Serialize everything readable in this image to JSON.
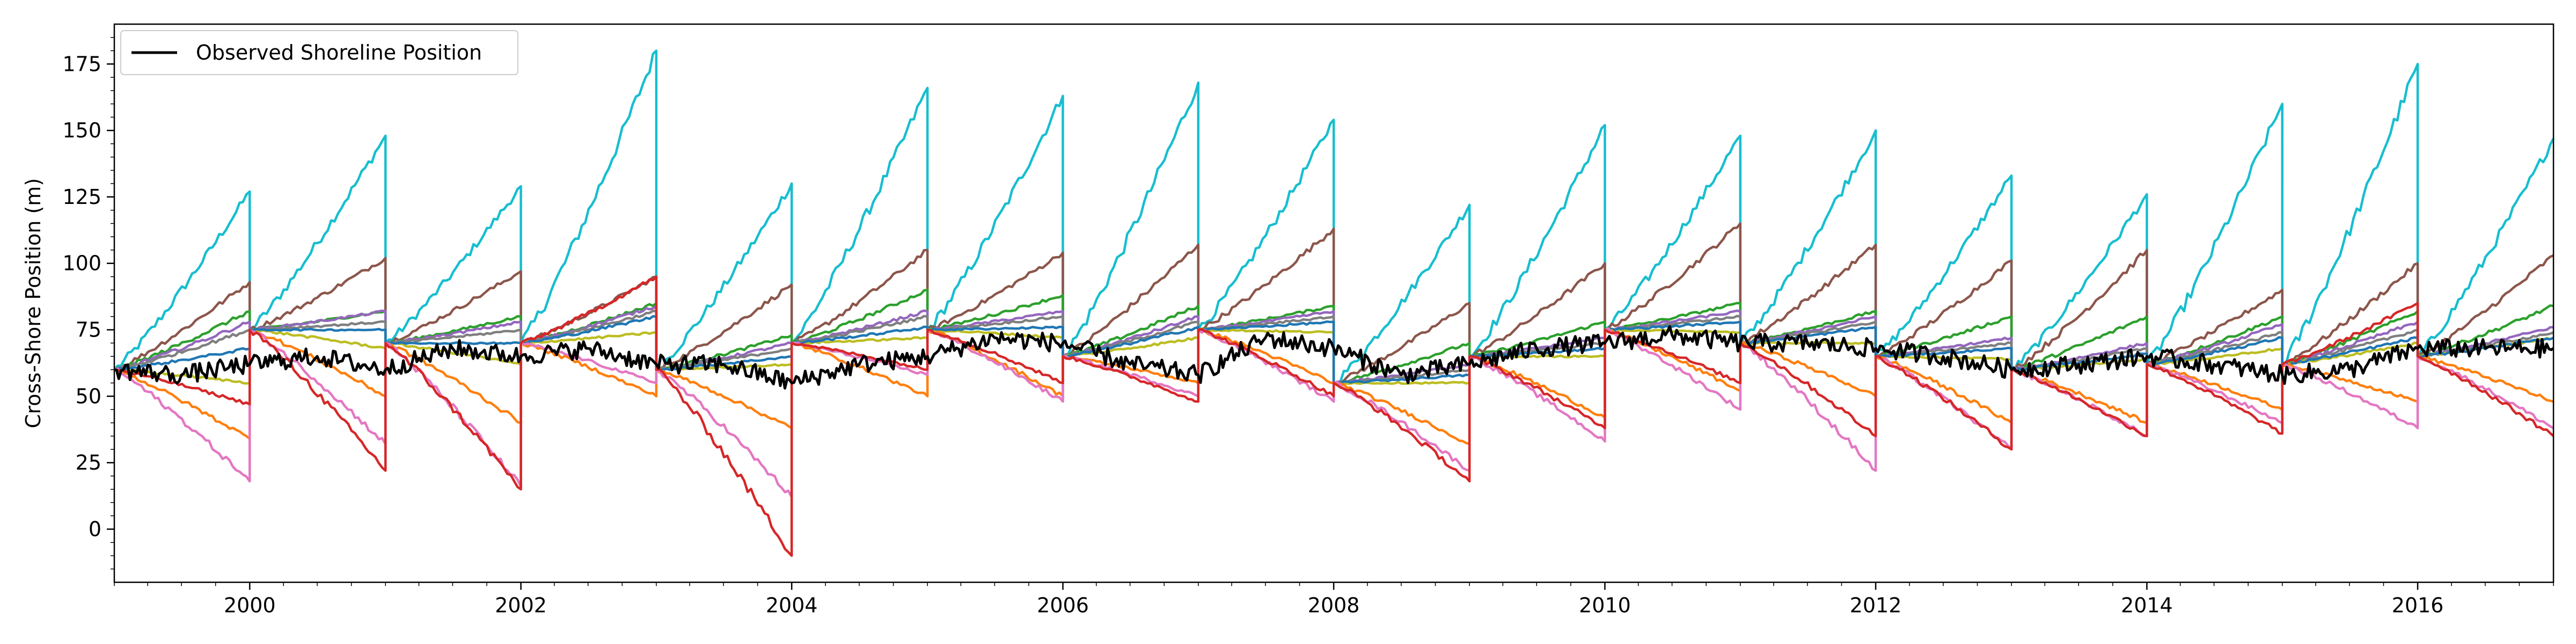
{
  "chart_data": {
    "type": "line",
    "title": "",
    "xlabel": "",
    "ylabel": "Cross-Shore Position (m)",
    "xlim": [
      "1999-01-01",
      "2017-01-01"
    ],
    "ylim": [
      -20,
      190
    ],
    "x_ticks": [
      "2000",
      "2002",
      "2004",
      "2006",
      "2008",
      "2010",
      "2012",
      "2014",
      "2016"
    ],
    "y_ticks": [
      "0",
      "25",
      "50",
      "75",
      "100",
      "125",
      "150",
      "175"
    ],
    "grid": false,
    "legend": {
      "position": "top-left",
      "entries": [
        "Observed Shoreline Position"
      ]
    },
    "observed": {
      "name": "Observed Shoreline Position",
      "color": "#000000",
      "x": [
        "1999-01-01",
        "1999-07-01",
        "2000-01-01",
        "2000-07-01",
        "2001-01-01",
        "2001-07-01",
        "2002-01-01",
        "2002-07-01",
        "2003-01-01",
        "2003-07-01",
        "2004-01-01",
        "2004-07-01",
        "2005-01-01",
        "2005-07-01",
        "2006-01-01",
        "2006-07-01",
        "2007-01-01",
        "2007-07-01",
        "2008-01-01",
        "2008-07-01",
        "2009-01-01",
        "2009-07-01",
        "2010-01-01",
        "2010-07-01",
        "2011-01-01",
        "2011-07-01",
        "2012-01-01",
        "2012-07-01",
        "2013-01-01",
        "2013-07-01",
        "2014-01-01",
        "2014-07-01",
        "2015-01-01",
        "2015-07-01",
        "2016-01-01",
        "2016-07-01",
        "2017-01-01"
      ],
      "y": [
        60,
        58,
        62,
        65,
        60,
        68,
        65,
        68,
        62,
        62,
        55,
        62,
        65,
        72,
        70,
        62,
        58,
        72,
        68,
        58,
        62,
        68,
        70,
        73,
        70,
        70,
        68,
        65,
        60,
        62,
        65,
        62,
        58,
        60,
        68,
        68,
        68
      ]
    },
    "model_segments": [
      {
        "start": "1999-01-01",
        "end": "2000-01-01"
      },
      {
        "start": "2000-01-01",
        "end": "2001-01-01"
      },
      {
        "start": "2001-01-01",
        "end": "2002-01-01"
      },
      {
        "start": "2002-01-01",
        "end": "2003-01-01"
      },
      {
        "start": "2003-01-01",
        "end": "2004-01-01"
      },
      {
        "start": "2004-01-01",
        "end": "2005-01-01"
      },
      {
        "start": "2005-01-01",
        "end": "2006-01-01"
      },
      {
        "start": "2006-01-01",
        "end": "2007-01-01"
      },
      {
        "start": "2007-01-01",
        "end": "2008-01-01"
      },
      {
        "start": "2008-01-01",
        "end": "2009-01-01"
      },
      {
        "start": "2009-01-01",
        "end": "2010-01-01"
      },
      {
        "start": "2010-01-01",
        "end": "2011-01-01"
      },
      {
        "start": "2011-01-01",
        "end": "2012-01-01"
      },
      {
        "start": "2012-01-01",
        "end": "2013-01-01"
      },
      {
        "start": "2013-01-01",
        "end": "2014-01-01"
      },
      {
        "start": "2014-01-01",
        "end": "2015-01-01"
      },
      {
        "start": "2015-01-01",
        "end": "2016-01-01"
      },
      {
        "start": "2016-01-01",
        "end": "2017-01-01"
      }
    ],
    "series": [
      {
        "color": "#17becf",
        "start": [
          60,
          75,
          70,
          70,
          60,
          70,
          75,
          65,
          75,
          55,
          65,
          75,
          70,
          65,
          60,
          62,
          62,
          65
        ],
        "end": [
          127,
          148,
          129,
          180,
          130,
          166,
          163,
          168,
          154,
          122,
          152,
          148,
          150,
          133,
          126,
          160,
          175,
          147
        ]
      },
      {
        "color": "#8c564b",
        "start": [
          60,
          75,
          70,
          70,
          60,
          70,
          75,
          65,
          75,
          55,
          65,
          75,
          70,
          65,
          60,
          62,
          62,
          65
        ],
        "end": [
          93,
          102,
          97,
          95,
          92,
          105,
          104,
          107,
          113,
          85,
          100,
          115,
          107,
          101,
          105,
          90,
          100,
          103
        ]
      },
      {
        "color": "#2ca02c",
        "start": [
          60,
          75,
          70,
          70,
          60,
          70,
          75,
          65,
          75,
          55,
          65,
          75,
          70,
          65,
          60,
          62,
          62,
          65
        ],
        "end": [
          82,
          82,
          80,
          85,
          73,
          90,
          88,
          84,
          84,
          70,
          78,
          85,
          82,
          80,
          80,
          80,
          82,
          84
        ]
      },
      {
        "color": "#9467bd",
        "start": [
          60,
          75,
          70,
          70,
          60,
          70,
          75,
          65,
          75,
          55,
          65,
          75,
          70,
          65,
          60,
          62,
          62,
          65
        ],
        "end": [
          78,
          82,
          78,
          84,
          70,
          82,
          82,
          80,
          82,
          62,
          72,
          82,
          80,
          72,
          70,
          77,
          78,
          76
        ]
      },
      {
        "color": "#7f7f7f",
        "start": [
          60,
          75,
          70,
          70,
          60,
          70,
          75,
          65,
          75,
          55,
          65,
          75,
          70,
          65,
          60,
          62,
          62,
          65
        ],
        "end": [
          75,
          78,
          75,
          82,
          68,
          80,
          80,
          78,
          80,
          60,
          70,
          80,
          78,
          70,
          68,
          74,
          75,
          74
        ]
      },
      {
        "color": "#bcbd22",
        "start": [
          60,
          75,
          70,
          70,
          60,
          70,
          75,
          65,
          75,
          55,
          65,
          75,
          70,
          65,
          60,
          62,
          62,
          65
        ],
        "end": [
          55,
          68,
          62,
          74,
          62,
          72,
          72,
          72,
          74,
          55,
          65,
          74,
          70,
          64,
          64,
          68,
          70,
          72
        ]
      },
      {
        "color": "#1f77b4",
        "start": [
          60,
          75,
          70,
          70,
          60,
          70,
          75,
          65,
          75,
          55,
          65,
          75,
          70,
          65,
          60,
          62,
          62,
          65
        ],
        "end": [
          68,
          75,
          70,
          80,
          65,
          76,
          76,
          76,
          78,
          58,
          68,
          78,
          76,
          68,
          66,
          72,
          72,
          72
        ]
      },
      {
        "color": "#ff7f0e",
        "start": [
          60,
          75,
          70,
          70,
          60,
          70,
          75,
          65,
          75,
          55,
          65,
          75,
          70,
          65,
          60,
          62,
          62,
          65
        ],
        "end": [
          34,
          50,
          40,
          50,
          38,
          50,
          50,
          55,
          55,
          32,
          42,
          52,
          50,
          40,
          40,
          45,
          48,
          48
        ]
      },
      {
        "color": "#e377c2",
        "start": [
          60,
          75,
          70,
          70,
          60,
          70,
          75,
          65,
          75,
          55,
          65,
          75,
          70,
          65,
          60,
          62,
          62,
          65
        ],
        "end": [
          18,
          32,
          16,
          55,
          12,
          58,
          48,
          50,
          48,
          22,
          33,
          45,
          22,
          30,
          35,
          40,
          38,
          38
        ]
      },
      {
        "color": "#d62728",
        "start": [
          60,
          75,
          70,
          70,
          60,
          70,
          75,
          65,
          75,
          55,
          65,
          75,
          70,
          65,
          60,
          62,
          62,
          65
        ],
        "end": [
          47,
          22,
          15,
          95,
          -10,
          60,
          55,
          48,
          50,
          18,
          38,
          55,
          35,
          30,
          35,
          36,
          85,
          35
        ]
      }
    ]
  }
}
